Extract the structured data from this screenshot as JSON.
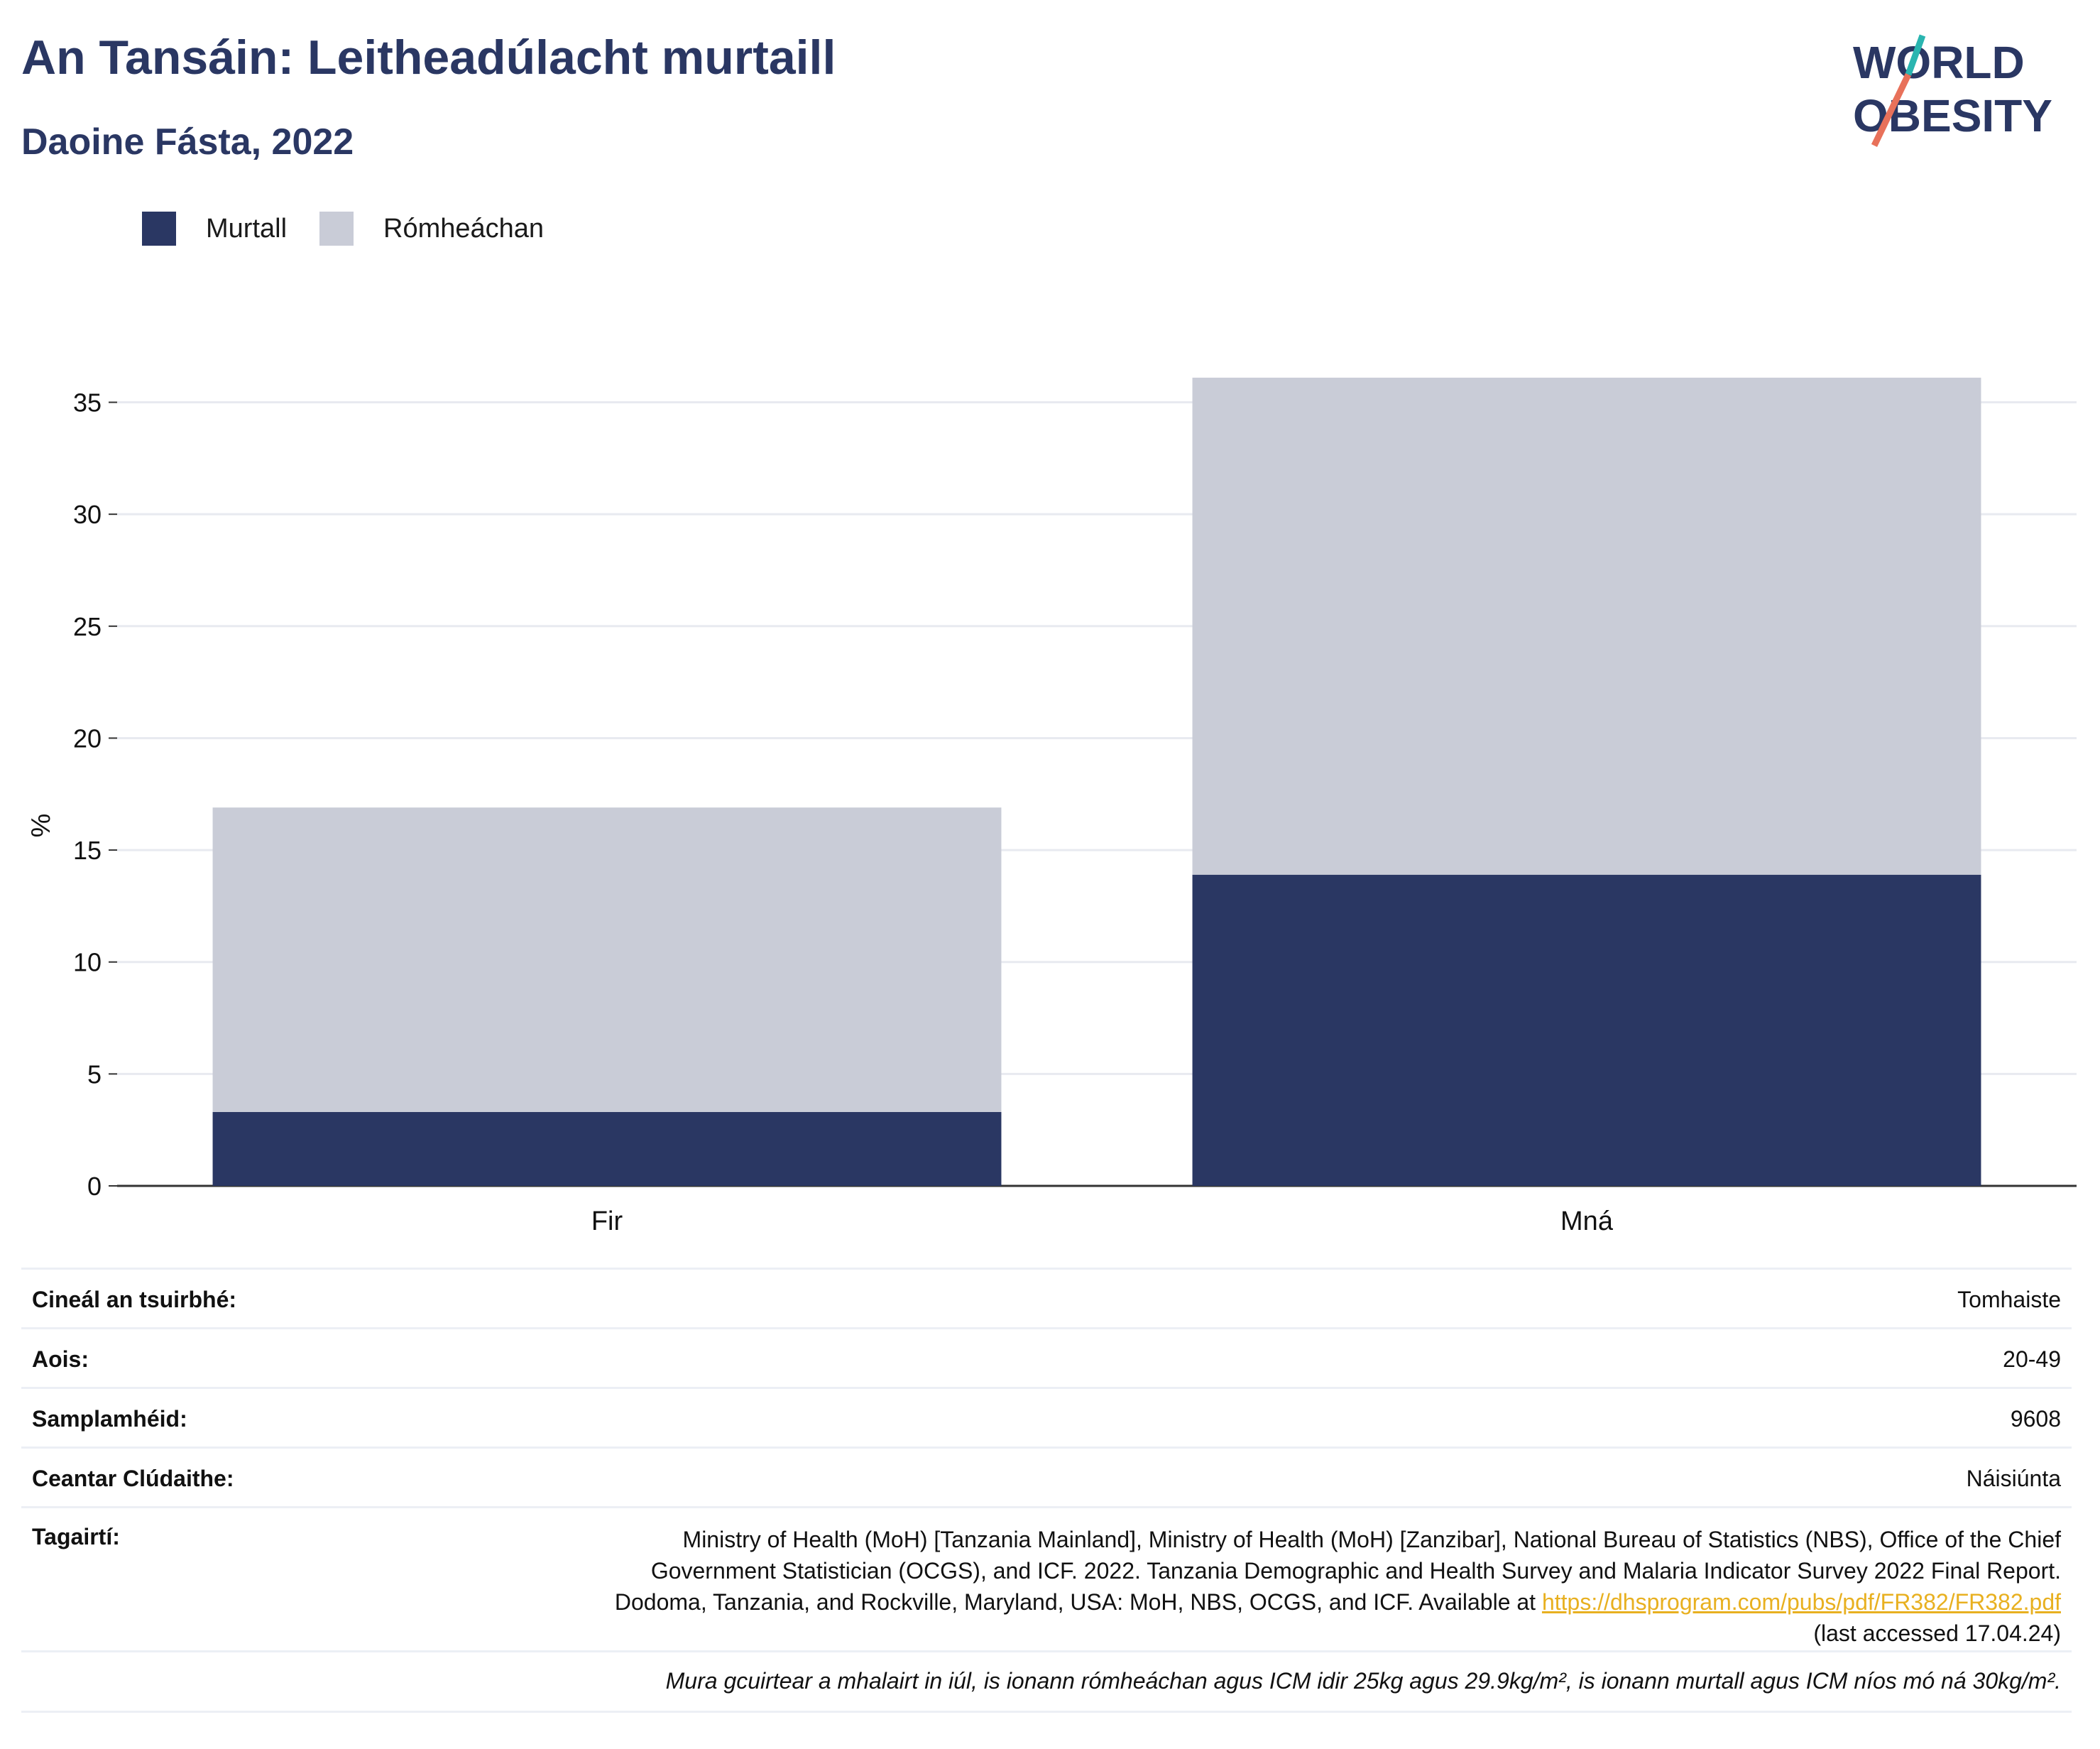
{
  "header": {
    "title": "An Tansáin: Leitheadúlacht murtaill",
    "subtitle": "Daoine Fásta, 2022"
  },
  "logo": {
    "line1": "WORLD",
    "line2": "OBESITY",
    "accent_teal": "#2ab5b0",
    "accent_coral": "#e8715a"
  },
  "legend": [
    {
      "label": "Murtall",
      "color": "#2a3763"
    },
    {
      "label": "Rómheáchan",
      "color": "#c9ccd7"
    }
  ],
  "chart_data": {
    "type": "bar",
    "stacked": true,
    "categories": [
      "Fir",
      "Mná"
    ],
    "series": [
      {
        "name": "Murtall",
        "color": "#2a3763",
        "values": [
          3.3,
          13.9
        ]
      },
      {
        "name": "Rómheáchan",
        "color": "#c9ccd7",
        "values": [
          13.6,
          22.2
        ]
      }
    ],
    "ylabel": "%",
    "ylim": [
      0,
      36
    ],
    "yticks": [
      0,
      5,
      10,
      15,
      20,
      25,
      30,
      35
    ],
    "grid": true
  },
  "meta": {
    "rows": [
      {
        "key": "Cineál an tsuirbhé:",
        "value": "Tomhaiste"
      },
      {
        "key": "Aois:",
        "value": "20-49"
      },
      {
        "key": "Samplamhéid:",
        "value": "9608"
      },
      {
        "key": "Ceantar Clúdaithe:",
        "value": "Náisiúnta"
      }
    ],
    "ref_key": "Tagairtí:",
    "ref_text": "Ministry of Health (MoH) [Tanzania Mainland], Ministry of Health (MoH) [Zanzibar], National Bureau of Statistics (NBS), Office of the Chief Government Statistician (OCGS), and ICF. 2022. Tanzania Demographic and Health Survey and Malaria Indicator Survey 2022 Final Report. Dodoma, Tanzania, and Rockville, Maryland, USA: MoH, NBS, OCGS, and ICF. Available at",
    "ref_link": "https://dhsprogram.com/pubs/pdf/FR382/FR382.pdf",
    "ref_suffix": "(last accessed 17.04.24)",
    "note": "Mura gcuirtear a mhalairt in iúl, is ionann rómheáchan agus ICM idir 25kg agus 29.9kg/m², is ionann murtall agus ICM níos mó ná 30kg/m²."
  }
}
